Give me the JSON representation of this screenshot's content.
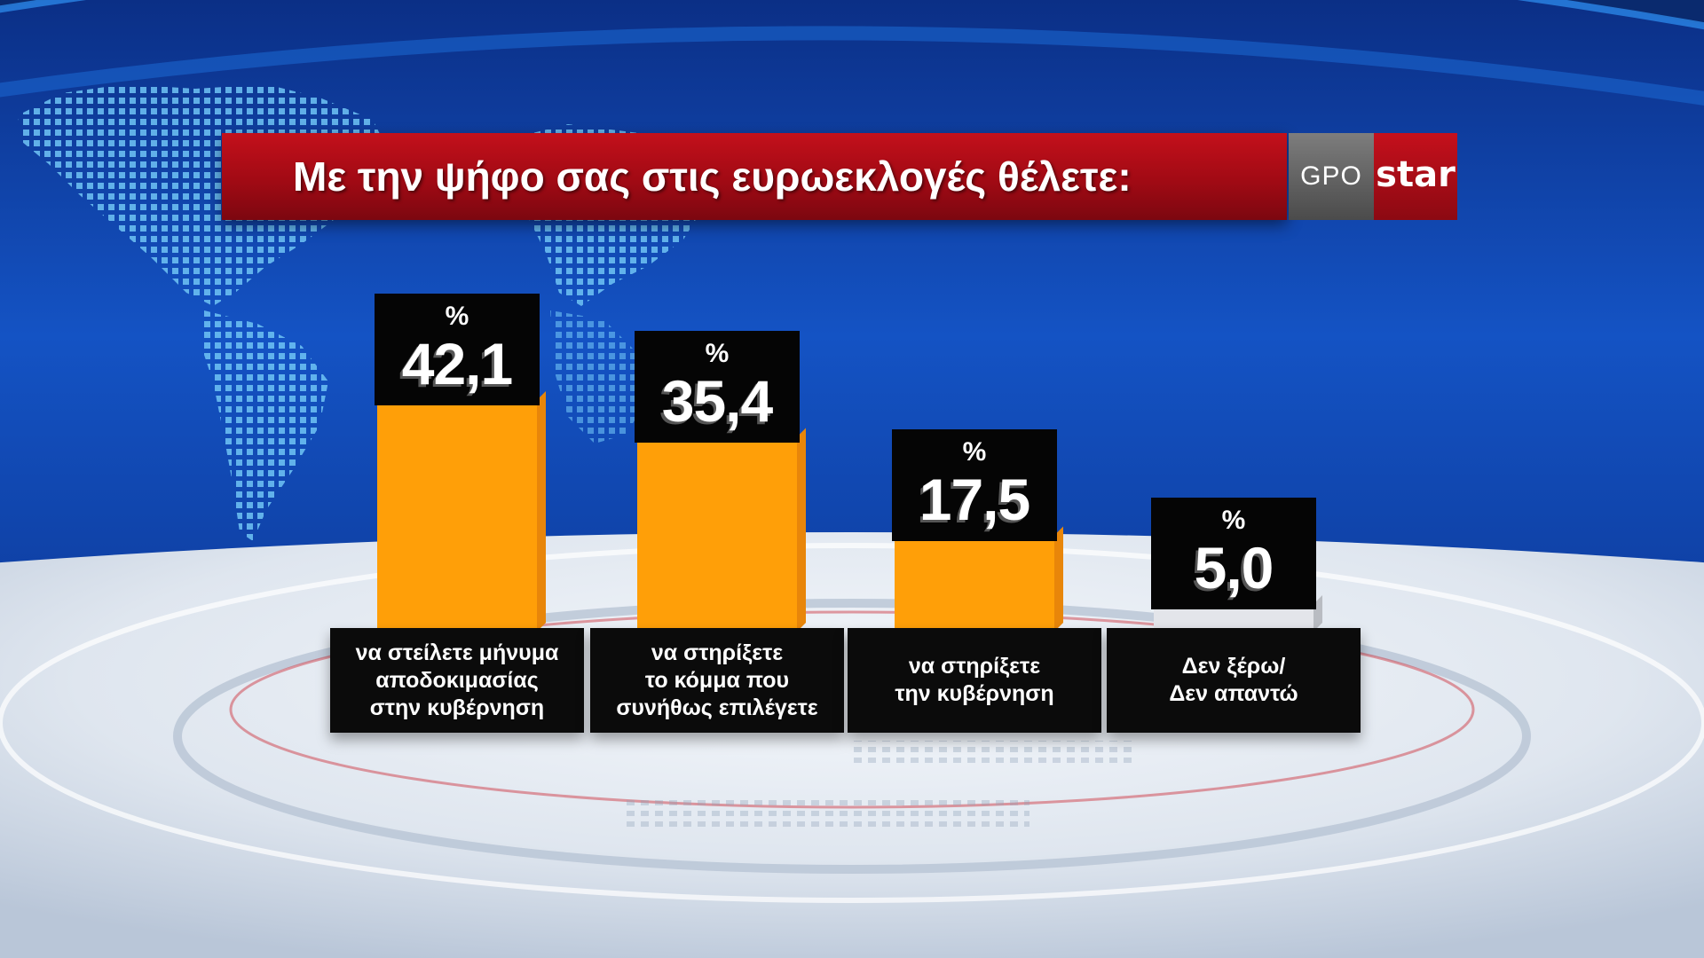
{
  "header": {
    "title": "Με την ψήφο σας στις ευρωεκλογές θέλετε:",
    "logo_gpo": "GPO",
    "logo_star": "star"
  },
  "colors": {
    "bar": "#ff9f08",
    "bar_side": "#e8860a",
    "title_bar": "#b10d17",
    "background": "#0d3f9c"
  },
  "chart_data": {
    "type": "bar",
    "categories": [
      "να στείλετε μήνυμα αποδοκιμασίας στην κυβέρνηση",
      "να στηρίξετε το κόμμα που συνήθως επιλέγετε",
      "να στηρίξετε την κυβέρνηση",
      "Δεν ξέρω/ Δεν απαντώ"
    ],
    "labels": [
      [
        "να στείλετε μήνυμα",
        "αποδοκιμασίας",
        "στην κυβέρνηση"
      ],
      [
        "να στηρίξετε",
        "το κόμμα που",
        "συνήθως επιλέγετε"
      ],
      [
        "να στηρίξετε",
        "την κυβέρνηση"
      ],
      [
        "Δεν ξέρω/",
        "Δεν απαντώ"
      ]
    ],
    "values": [
      42.1,
      35.4,
      17.5,
      5.0
    ],
    "value_labels": [
      "42,1",
      "35,4",
      "17,5",
      "5,0"
    ],
    "unit": "%",
    "ylim": [
      0,
      45
    ]
  }
}
